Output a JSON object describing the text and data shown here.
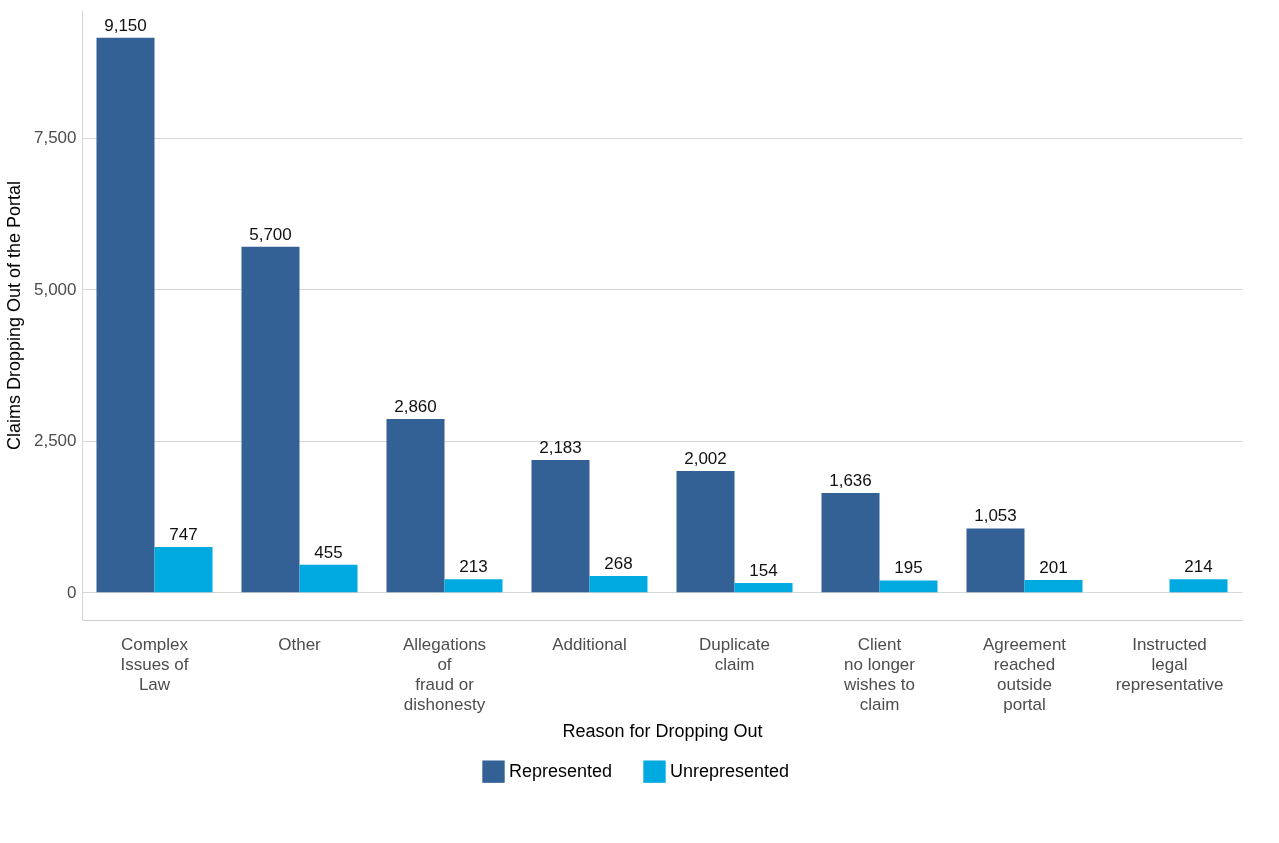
{
  "chart_data": {
    "type": "bar",
    "xlabel": "Reason for Dropping Out",
    "ylabel": "Claims Dropping Out of the Portal",
    "categories": [
      "Complex\nIssues of\nLaw",
      "Other",
      "Allegations\nof\nfraud or\ndishonesty",
      "Additional",
      "Duplicate\nclaim",
      "Client\nno longer\nwishes to\nclaim",
      "Agreement\nreached\noutside\nportal",
      "Instructed\nlegal\nrepresentative"
    ],
    "series": [
      {
        "name": "Represented",
        "color": "#336195",
        "values": [
          9150,
          5700,
          2860,
          2183,
          2002,
          1636,
          1053,
          null
        ],
        "value_labels": [
          "9,150",
          "5,700",
          "2,860",
          "2,183",
          "2,002",
          "1,636",
          "1,053",
          null
        ]
      },
      {
        "name": "Unrepresented",
        "color": "#00a9e0",
        "values": [
          747,
          455,
          213,
          268,
          154,
          195,
          201,
          214
        ],
        "value_labels": [
          "747",
          "455",
          "213",
          "268",
          "154",
          "195",
          "201",
          "214"
        ]
      }
    ],
    "ylim": [
      -457.5,
      9607.5
    ],
    "yticks": [
      0,
      {
        "value": 2500,
        "label": "2,500"
      },
      {
        "value": 5000,
        "label": "5,000"
      },
      {
        "value": 7500,
        "label": "7,500"
      }
    ],
    "grid": "y",
    "legend": "bottom"
  }
}
